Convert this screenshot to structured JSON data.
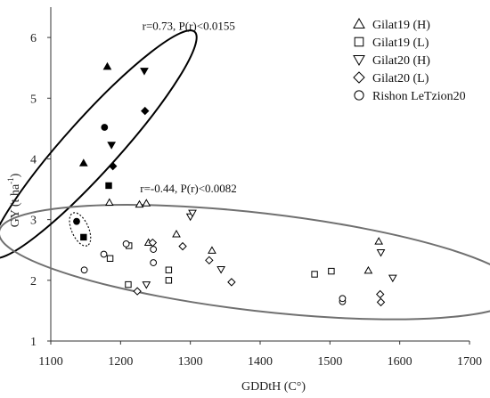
{
  "chart_data": {
    "type": "scatter",
    "title": "",
    "xlabel": "GDDtH (C°)",
    "ylabel_main": "GY (t ha",
    "ylabel_sup": "-1",
    "ylabel_close": ")",
    "xlim": [
      1100,
      1700
    ],
    "ylim": [
      1,
      6.5
    ],
    "xticks": [
      "1100",
      "1200",
      "1300",
      "1400",
      "1500",
      "1600",
      "1700"
    ],
    "yticks": [
      "1",
      "2",
      "3",
      "4",
      "5",
      "6"
    ],
    "grid": false,
    "legend_position": "top-right",
    "series": [
      {
        "name": "Gilat19 (H)",
        "marker": "triangle-up",
        "points": [
          {
            "x": 1147,
            "y": 3.93,
            "filled": true
          },
          {
            "x": 1181,
            "y": 5.52,
            "filled": true
          },
          {
            "x": 1184,
            "y": 3.28,
            "filled": false
          },
          {
            "x": 1227,
            "y": 3.25,
            "filled": false
          },
          {
            "x": 1237,
            "y": 3.27,
            "filled": false
          },
          {
            "x": 1240,
            "y": 2.62,
            "filled": false
          },
          {
            "x": 1280,
            "y": 2.76,
            "filled": false
          },
          {
            "x": 1331,
            "y": 2.49,
            "filled": false
          },
          {
            "x": 1555,
            "y": 2.16,
            "filled": false
          },
          {
            "x": 1570,
            "y": 2.64,
            "filled": false
          }
        ]
      },
      {
        "name": "Gilat19 (L)",
        "marker": "square",
        "points": [
          {
            "x": 1183,
            "y": 3.56,
            "filled": true
          },
          {
            "x": 1147,
            "y": 2.71,
            "filled": true
          },
          {
            "x": 1185,
            "y": 2.36,
            "filled": false
          },
          {
            "x": 1211,
            "y": 1.93,
            "filled": false
          },
          {
            "x": 1212,
            "y": 2.57,
            "filled": false
          },
          {
            "x": 1269,
            "y": 2.17,
            "filled": false
          },
          {
            "x": 1269,
            "y": 2.0,
            "filled": false
          },
          {
            "x": 1478,
            "y": 2.1,
            "filled": false
          },
          {
            "x": 1502,
            "y": 2.15,
            "filled": false
          }
        ]
      },
      {
        "name": "Gilat20 (H)",
        "marker": "triangle-down",
        "points": [
          {
            "x": 1234,
            "y": 5.45,
            "filled": true
          },
          {
            "x": 1187,
            "y": 4.23,
            "filled": true
          },
          {
            "x": 1237,
            "y": 1.93,
            "filled": false
          },
          {
            "x": 1300,
            "y": 3.05,
            "filled": false
          },
          {
            "x": 1303,
            "y": 3.11,
            "filled": false
          },
          {
            "x": 1344,
            "y": 2.18,
            "filled": false
          },
          {
            "x": 1573,
            "y": 2.46,
            "filled": false
          },
          {
            "x": 1590,
            "y": 2.04,
            "filled": false
          }
        ]
      },
      {
        "name": "Gilat20 (L)",
        "marker": "diamond",
        "points": [
          {
            "x": 1235,
            "y": 4.79,
            "filled": true
          },
          {
            "x": 1189,
            "y": 3.88,
            "filled": true
          },
          {
            "x": 1224,
            "y": 1.82,
            "filled": false
          },
          {
            "x": 1246,
            "y": 2.62,
            "filled": false
          },
          {
            "x": 1289,
            "y": 2.56,
            "filled": false
          },
          {
            "x": 1327,
            "y": 2.33,
            "filled": false
          },
          {
            "x": 1359,
            "y": 1.97,
            "filled": false
          },
          {
            "x": 1572,
            "y": 1.77,
            "filled": false
          },
          {
            "x": 1573,
            "y": 1.64,
            "filled": false
          }
        ]
      },
      {
        "name": "Rishon LeTzion20",
        "marker": "circle",
        "points": [
          {
            "x": 1177,
            "y": 4.52,
            "filled": true
          },
          {
            "x": 1137,
            "y": 2.97,
            "filled": true
          },
          {
            "x": 1148,
            "y": 2.17,
            "filled": false
          },
          {
            "x": 1176,
            "y": 2.43,
            "filled": false
          },
          {
            "x": 1208,
            "y": 2.6,
            "filled": false
          },
          {
            "x": 1247,
            "y": 2.29,
            "filled": false
          },
          {
            "x": 1247,
            "y": 2.51,
            "filled": false
          },
          {
            "x": 1518,
            "y": 1.65,
            "filled": false
          },
          {
            "x": 1518,
            "y": 1.7,
            "filled": false
          }
        ]
      }
    ],
    "annotations": [
      {
        "text": "r=0.73, P(r)<0.0155",
        "x": 1231,
        "y": 6.2
      },
      {
        "text": "r=-0.44, P(r)<0.0082",
        "x": 1228,
        "y": 3.52
      }
    ],
    "ellipses": [
      {
        "cx": 1161,
        "cy": 4.24,
        "rx": 170,
        "ry": 30,
        "angle_deg": -48,
        "color": "#000000"
      },
      {
        "cx": 1400,
        "cy": 2.3,
        "rx": 295,
        "ry": 55,
        "angle_deg": 6.6,
        "color": "#707070"
      }
    ]
  }
}
